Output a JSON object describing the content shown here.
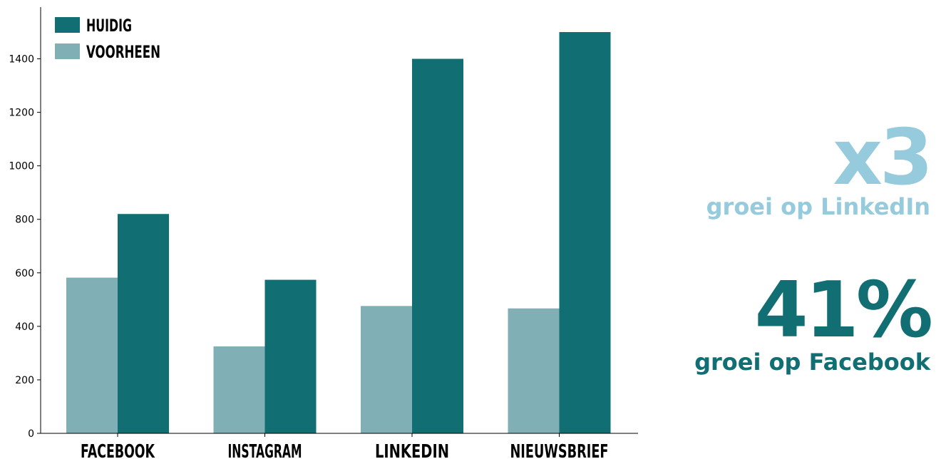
{
  "chart_data": {
    "type": "bar",
    "categories": [
      "FACEBOOK",
      "INSTAGRAM",
      "LINKEDIN",
      "NIEUWSBRIEF"
    ],
    "series": [
      {
        "name": "VOORHEEN",
        "values": [
          582,
          325,
          476,
          467
        ],
        "color": "#80afb5"
      },
      {
        "name": "HUIDIG",
        "values": [
          820,
          574,
          1400,
          1500
        ],
        "color": "#116f73"
      }
    ],
    "legend_order": [
      "HUIDIG",
      "VOORHEEN"
    ],
    "yticks": [
      0,
      200,
      400,
      600,
      800,
      1000,
      1200,
      1400
    ],
    "ylim": [
      0,
      1500
    ],
    "title": "",
    "xlabel": "",
    "ylabel": "",
    "grid": false,
    "legend_position": "top-left"
  },
  "stats": [
    {
      "value": "x3",
      "caption": "groei op LinkedIn",
      "color": "#95cbdc"
    },
    {
      "value": "41%",
      "caption": "groei op Facebook",
      "color": "#116f73"
    }
  ]
}
